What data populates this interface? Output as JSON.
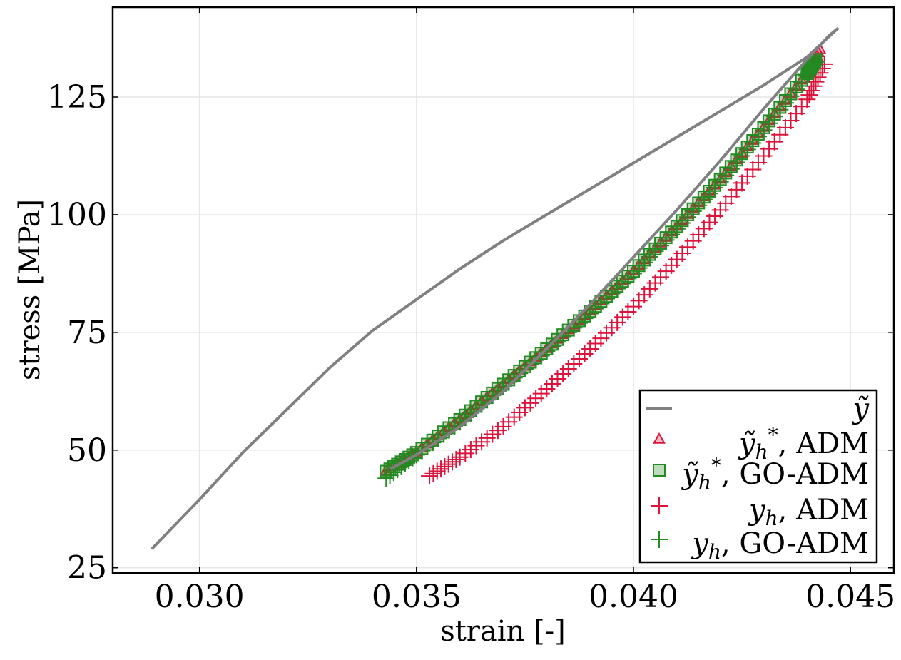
{
  "chart_data": {
    "type": "scatter",
    "title": "",
    "xlabel": "strain [-]",
    "ylabel": "stress [MPa]",
    "xlim": [
      0.028,
      0.046
    ],
    "ylim": [
      23.9,
      144.1
    ],
    "grid": true,
    "legend_position": "lower right",
    "xticks": [
      0.03,
      0.035,
      0.04,
      0.045
    ],
    "xtick_labels": [
      "0.030",
      "0.035",
      "0.040",
      "0.045"
    ],
    "yticks": [
      25,
      50,
      75,
      100,
      125
    ],
    "ytick_labels": [
      "25",
      "50",
      "75",
      "100",
      "125"
    ],
    "colors": {
      "reference": "#808080",
      "adm": "#dc143c",
      "go_adm": "#228b22",
      "grid": "#e6e6e6"
    },
    "series": [
      {
        "name": "ỹ",
        "style": "line",
        "color": "#808080",
        "x": [
          0.0289,
          0.03,
          0.031,
          0.032,
          0.033,
          0.034,
          0.035,
          0.036,
          0.037,
          0.038,
          0.039,
          0.04,
          0.041,
          0.042,
          0.043,
          0.044,
          0.0447,
          0.0445,
          0.044,
          0.043,
          0.042,
          0.041,
          0.04,
          0.039,
          0.038,
          0.037,
          0.036,
          0.035,
          0.0344
        ],
        "y": [
          29.0,
          39.5,
          49.5,
          58.5,
          67.5,
          75.5,
          82.0,
          88.5,
          94.5,
          100.0,
          105.5,
          111.0,
          116.5,
          122.0,
          127.5,
          133.5,
          139.5,
          138.0,
          133.0,
          122.5,
          111.5,
          101.0,
          91.0,
          81.0,
          71.5,
          62.5,
          55.0,
          49.0,
          46.0
        ]
      },
      {
        "name": "ỹ*_h, ADM",
        "style": "marker",
        "marker": "triangle",
        "color": "#dc143c",
        "x": [
          0.0343,
          0.035,
          0.036,
          0.037,
          0.038,
          0.039,
          0.04,
          0.041,
          0.042,
          0.043,
          0.044,
          0.0443
        ],
        "y": [
          45.5,
          49.5,
          56.5,
          64.0,
          71.5,
          79.5,
          88.0,
          97.5,
          107.5,
          118.5,
          130.0,
          135.0
        ]
      },
      {
        "name": "ỹ*_h, GO-ADM",
        "style": "marker",
        "marker": "square",
        "color": "#228b22",
        "x": [
          0.0343,
          0.035,
          0.036,
          0.037,
          0.038,
          0.039,
          0.04,
          0.041,
          0.042,
          0.043,
          0.044,
          0.0442
        ],
        "y": [
          45.5,
          49.5,
          56.5,
          64.0,
          71.5,
          79.5,
          88.0,
          97.5,
          107.5,
          118.5,
          130.0,
          133.0
        ]
      },
      {
        "name": "y_h, ADM",
        "style": "marker",
        "marker": "plus",
        "color": "#dc143c",
        "x": [
          0.0353,
          0.036,
          0.037,
          0.038,
          0.039,
          0.04,
          0.041,
          0.042,
          0.043,
          0.044,
          0.0444
        ],
        "y": [
          44.5,
          48.5,
          55.0,
          63.0,
          71.5,
          80.5,
          90.5,
          101.0,
          112.5,
          124.5,
          132.0
        ]
      },
      {
        "name": "y_h, GO-ADM",
        "style": "marker",
        "marker": "plus",
        "color": "#228b22",
        "x": [
          0.0343,
          0.035,
          0.036,
          0.037,
          0.038,
          0.039,
          0.04,
          0.041,
          0.042,
          0.043,
          0.044,
          0.0442
        ],
        "y": [
          44.0,
          49.0,
          56.0,
          63.5,
          71.0,
          79.0,
          87.5,
          97.0,
          107.0,
          118.0,
          129.5,
          132.5
        ]
      }
    ],
    "legend": [
      {
        "marker": "line",
        "color": "#808080",
        "base": "ỹ",
        "sub": "",
        "sup": "",
        "suffix": ""
      },
      {
        "marker": "triangle",
        "color": "#dc143c",
        "base": "ỹ",
        "sub": "h",
        "sup": "*",
        "suffix": ", ADM"
      },
      {
        "marker": "square",
        "color": "#228b22",
        "base": "ỹ",
        "sub": "h",
        "sup": "*",
        "suffix": ", GO-ADM"
      },
      {
        "marker": "plus",
        "color": "#dc143c",
        "base": "y",
        "sub": "h",
        "sup": "",
        "suffix": ", ADM"
      },
      {
        "marker": "plus",
        "color": "#228b22",
        "base": "y",
        "sub": "h",
        "sup": "",
        "suffix": ", GO-ADM"
      }
    ]
  }
}
